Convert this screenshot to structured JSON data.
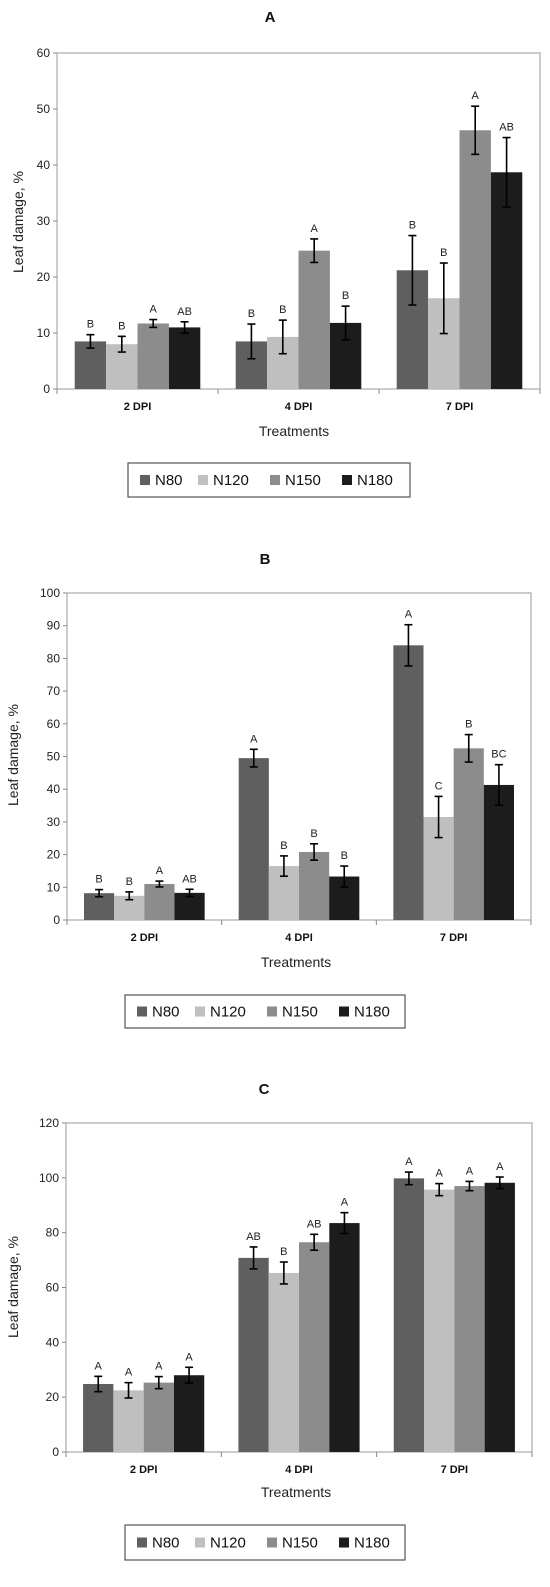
{
  "chart_data": [
    {
      "type": "bar",
      "title": "A",
      "xlabel": "Treatments",
      "ylabel": "Leaf damage, %",
      "ylim": [
        0,
        60
      ],
      "yticks": [
        0,
        10,
        20,
        30,
        40,
        50,
        60
      ],
      "categories": [
        "2 DPI",
        "4 DPI",
        "7 DPI"
      ],
      "grid": false,
      "legend_position": "bottom",
      "series": [
        {
          "name": "N80",
          "color": "#5f5f5f",
          "values": [
            8.5,
            8.5,
            21.2
          ],
          "errors": [
            1.2,
            3.1,
            6.2
          ],
          "letters": [
            "B",
            "B",
            "B"
          ]
        },
        {
          "name": "N120",
          "color": "#bfbfbf",
          "values": [
            8.0,
            9.3,
            16.2
          ],
          "errors": [
            1.4,
            3.0,
            6.3
          ],
          "letters": [
            "B",
            "B",
            "B"
          ]
        },
        {
          "name": "N150",
          "color": "#8c8c8c",
          "values": [
            11.7,
            24.7,
            46.2
          ],
          "errors": [
            0.7,
            2.1,
            4.3
          ],
          "letters": [
            "A",
            "A",
            "A"
          ]
        },
        {
          "name": "N180",
          "color": "#1c1c1c",
          "values": [
            11.0,
            11.8,
            38.7
          ],
          "errors": [
            1.0,
            3.0,
            6.2
          ],
          "letters": [
            "AB",
            "B",
            "AB"
          ]
        }
      ]
    },
    {
      "type": "bar",
      "title": "B",
      "xlabel": "Treatments",
      "ylabel": "Leaf damage, %",
      "ylim": [
        0,
        100
      ],
      "yticks": [
        0,
        10,
        20,
        30,
        40,
        50,
        60,
        70,
        80,
        90,
        100
      ],
      "categories": [
        "2 DPI",
        "4 DPI",
        "7 DPI"
      ],
      "grid": false,
      "legend_position": "bottom",
      "series": [
        {
          "name": "N80",
          "color": "#5f5f5f",
          "values": [
            8.2,
            49.5,
            84.0
          ],
          "errors": [
            1.1,
            2.7,
            6.3
          ],
          "letters": [
            "B",
            "A",
            "A"
          ]
        },
        {
          "name": "N120",
          "color": "#bfbfbf",
          "values": [
            7.4,
            16.5,
            31.5
          ],
          "errors": [
            1.2,
            3.1,
            6.3
          ],
          "letters": [
            "B",
            "B",
            "C"
          ]
        },
        {
          "name": "N150",
          "color": "#8c8c8c",
          "values": [
            11.0,
            20.8,
            52.5
          ],
          "errors": [
            0.9,
            2.5,
            4.2
          ],
          "letters": [
            "A",
            "B",
            "B"
          ]
        },
        {
          "name": "N180",
          "color": "#1c1c1c",
          "values": [
            8.3,
            13.3,
            41.3
          ],
          "errors": [
            1.1,
            3.2,
            6.2
          ],
          "letters": [
            "AB",
            "B",
            "BC"
          ]
        }
      ]
    },
    {
      "type": "bar",
      "title": "C",
      "xlabel": "Treatments",
      "ylabel": "Leaf damage, %",
      "ylim": [
        0,
        120
      ],
      "yticks": [
        0,
        20,
        40,
        60,
        80,
        100,
        120
      ],
      "categories": [
        "2 DPI",
        "4 DPI",
        "7 DPI"
      ],
      "grid": false,
      "legend_position": "bottom",
      "series": [
        {
          "name": "N80",
          "color": "#5f5f5f",
          "values": [
            24.8,
            70.8,
            99.8
          ],
          "errors": [
            2.8,
            4.0,
            2.3
          ],
          "letters": [
            "A",
            "AB",
            "A"
          ]
        },
        {
          "name": "N120",
          "color": "#bfbfbf",
          "values": [
            22.5,
            65.3,
            95.7
          ],
          "errors": [
            2.8,
            4.0,
            2.2
          ],
          "letters": [
            "A",
            "B",
            "A"
          ]
        },
        {
          "name": "N150",
          "color": "#8c8c8c",
          "values": [
            25.3,
            76.5,
            97.0
          ],
          "errors": [
            2.2,
            2.9,
            1.7
          ],
          "letters": [
            "A",
            "AB",
            "A"
          ]
        },
        {
          "name": "N180",
          "color": "#1c1c1c",
          "values": [
            28.0,
            83.5,
            98.2
          ],
          "errors": [
            2.9,
            3.8,
            2.1
          ],
          "letters": [
            "A",
            "A",
            "A"
          ]
        }
      ]
    }
  ]
}
